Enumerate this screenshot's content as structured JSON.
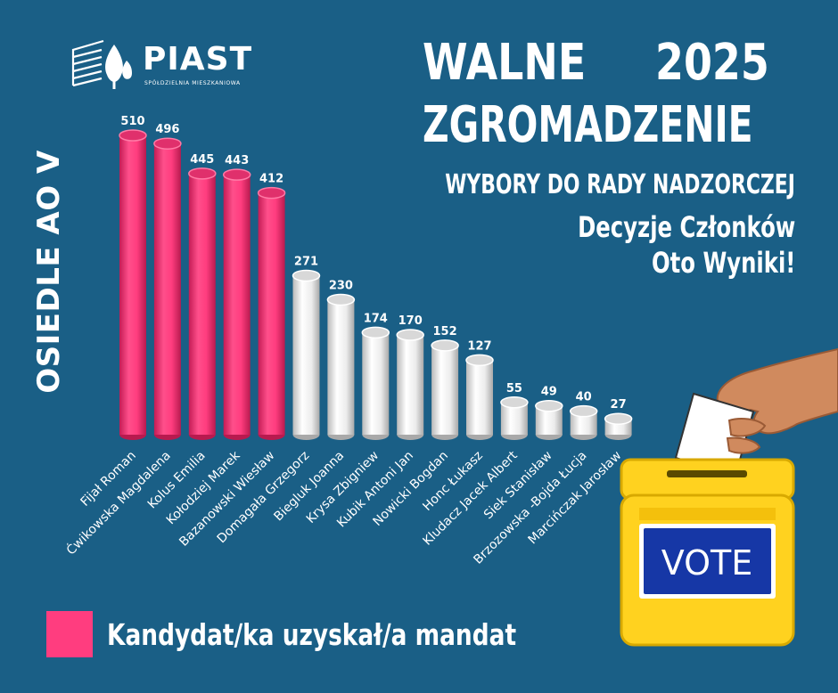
{
  "logo": {
    "name": "PIAST",
    "subtitle": "SPÓŁDZIELNIA MIESZKANIOWA"
  },
  "side_label": "OSIEDLE AO V",
  "headline": {
    "line1_left": "WALNE",
    "line1_right": "2025",
    "line2": "ZGROMADZENIE",
    "line3": "WYBORY DO RADY NADZORCZEJ",
    "line4": "Decyzje Członków",
    "line5": "Oto Wyniki!"
  },
  "legend": {
    "label": "Kandydat/ka uzyskał/a mandat",
    "color": "#ff3d7f"
  },
  "ballot_box": {
    "label": "VOTE",
    "box_color": "#ffd21f",
    "panel_color": "#1637a6"
  },
  "colors": {
    "background": "#1a5f86",
    "elected": "#ff3d7f",
    "not_elected": "#ececec"
  },
  "chart_data": {
    "type": "bar",
    "categories": [
      "Fijał Roman",
      "Ćwikowska Magdalena",
      "Kolus Emilia",
      "Kołodziej Marek",
      "Bazanowski Wiesław",
      "Domagała Grzegorz",
      "Biegluk Joanna",
      "Krysa Zbigniew",
      "Kubik Antoni Jan",
      "Nowicki Bogdan",
      "Honc Łukasz",
      "Kludacz Jacek Albert",
      "Siek Stanisław",
      "Brzozowska -Bojda Łucja",
      "Marcińczak Jarosław"
    ],
    "values": [
      510,
      496,
      445,
      443,
      412,
      271,
      230,
      174,
      170,
      152,
      127,
      55,
      49,
      40,
      27
    ],
    "elected": [
      true,
      true,
      true,
      true,
      true,
      false,
      false,
      false,
      false,
      false,
      false,
      false,
      false,
      false,
      false
    ],
    "title": "",
    "xlabel": "",
    "ylabel": "",
    "ylim": [
      0,
      510
    ],
    "grid": false,
    "legend_position": "bottom-left"
  }
}
